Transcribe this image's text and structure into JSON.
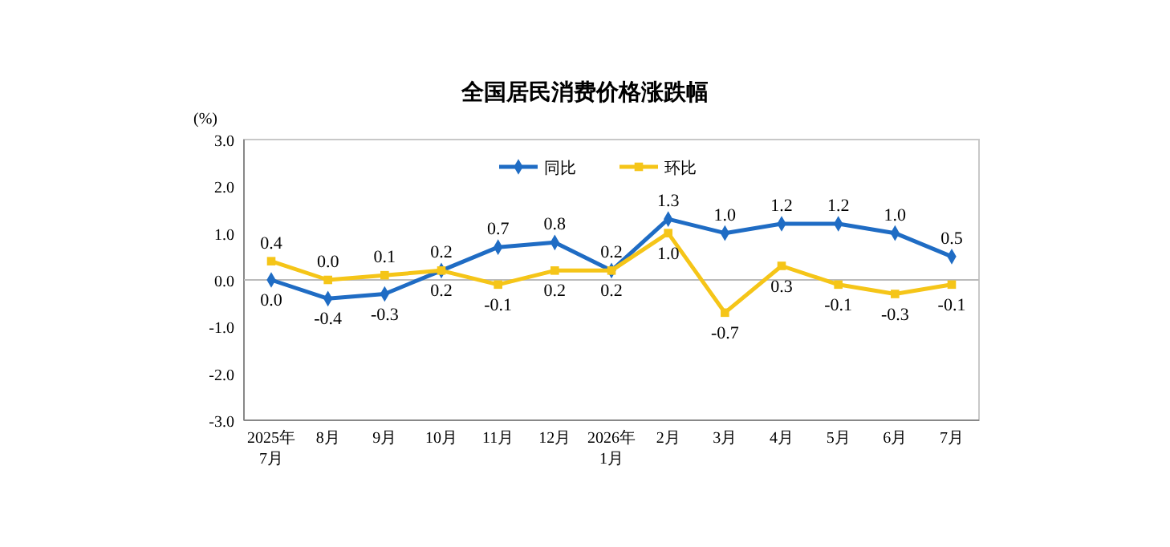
{
  "chart_data": {
    "type": "line",
    "title": "全国居民消费价格涨跌幅",
    "ylabel": "(%)",
    "categories": [
      "2025年\n7月",
      "8月",
      "9月",
      "10月",
      "11月",
      "12月",
      "2026年\n1月",
      "2月",
      "3月",
      "4月",
      "5月",
      "6月",
      "7月"
    ],
    "series": [
      {
        "name": "同比",
        "color": "#1f6cc4",
        "marker": "diamond",
        "values": [
          0.0,
          -0.4,
          -0.3,
          0.2,
          0.7,
          0.8,
          0.2,
          1.3,
          1.0,
          1.2,
          1.2,
          1.0,
          0.5
        ],
        "value_labels": [
          "0.0",
          "-0.4",
          "-0.3",
          "0.2",
          "0.7",
          "0.8",
          "0.2",
          "1.3",
          "1.0",
          "1.2",
          "1.2",
          "1.0",
          "0.5"
        ]
      },
      {
        "name": "环比",
        "color": "#f5c518",
        "marker": "square",
        "values": [
          0.4,
          0.0,
          0.1,
          0.2,
          -0.1,
          0.2,
          0.2,
          1.0,
          -0.7,
          0.3,
          -0.1,
          -0.3,
          -0.1
        ],
        "value_labels": [
          "0.4",
          "0.0",
          "0.1",
          "0.2",
          "-0.1",
          "0.2",
          "0.2",
          "1.0",
          "-0.7",
          "0.3",
          "-0.1",
          "-0.3",
          "-0.1"
        ]
      }
    ],
    "ylim": [
      -3,
      3
    ],
    "yticks": [
      {
        "value": -3,
        "label": "-3.0"
      },
      {
        "value": -2,
        "label": "-2.0"
      },
      {
        "value": -1,
        "label": "-1.0"
      },
      {
        "value": 0,
        "label": "0.0"
      },
      {
        "value": 1,
        "label": "1.0"
      },
      {
        "value": 2,
        "label": "2.0"
      },
      {
        "value": 3,
        "label": "3.0"
      }
    ],
    "legend": "top",
    "line_style": "solid"
  }
}
